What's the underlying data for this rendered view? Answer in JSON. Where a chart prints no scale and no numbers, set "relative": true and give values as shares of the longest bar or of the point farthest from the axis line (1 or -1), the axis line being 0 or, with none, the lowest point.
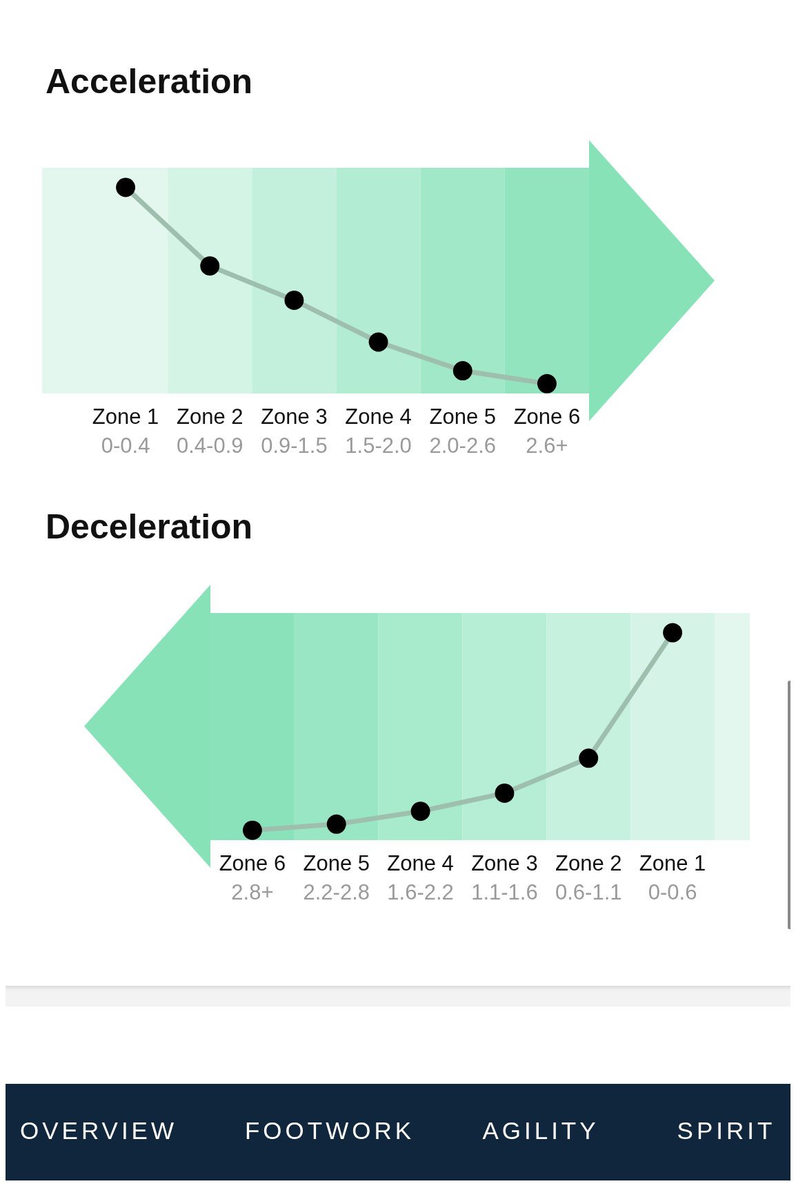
{
  "chart_data": [
    {
      "type": "line",
      "title": "Acceleration",
      "relative": true,
      "marker": "circle",
      "line_style": "solid",
      "grid": false,
      "tick_labels": "x",
      "categories": [
        "Zone 1\n0-0.4",
        "Zone 2\n0.4-0.9",
        "Zone 3\n0.9-1.5",
        "Zone 4\n1.5-2.0",
        "Zone 5\n2.0-2.6",
        "Zone 6\n2.6+"
      ],
      "series": [
        {
          "color": "#9fbfae",
          "values": [
            1,
            0.6,
            0.425,
            0.212,
            0.066,
            0
          ]
        }
      ],
      "bands": [
        {
          "axis": "x",
          "from": "Zone 1\n0-0.4",
          "to": "Zone 1\n0-0.4",
          "color": "#e3f7ee"
        },
        {
          "axis": "x",
          "from": "Zone 2\n0.4-0.9",
          "to": "Zone 2\n0.4-0.9",
          "color": "#d4f4e6"
        },
        {
          "axis": "x",
          "from": "Zone 3\n0.9-1.5",
          "to": "Zone 3\n0.9-1.5",
          "color": "#c3f0dd"
        },
        {
          "axis": "x",
          "from": "Zone 4\n1.5-2.0",
          "to": "Zone 4\n1.5-2.0",
          "color": "#b1ecd3"
        },
        {
          "axis": "x",
          "from": "Zone 5\n2.0-2.6",
          "to": "Zone 5\n2.0-2.6",
          "color": "#a0e8c8"
        },
        {
          "axis": "x",
          "from": "Zone 6\n2.6+",
          "to": "Zone 6\n2.6+",
          "color": "#91e4be"
        }
      ]
    },
    {
      "type": "line",
      "title": "Deceleration",
      "relative": true,
      "marker": "circle",
      "line_style": "solid",
      "grid": false,
      "tick_labels": "x",
      "categories": [
        "Zone 6\n2.8+",
        "Zone 5\n2.2-2.8",
        "Zone 4\n1.6-2.2",
        "Zone 3\n1.1-1.6",
        "Zone 2\n0.6-1.1",
        "Zone 1\n0-0.6"
      ],
      "series": [
        {
          "color": "#9fbfae",
          "values": [
            0,
            0.031,
            0.096,
            0.188,
            0.365,
            1
          ]
        }
      ],
      "bands": [
        {
          "axis": "x",
          "from": "Zone 6\n2.8+",
          "to": "Zone 6\n2.8+",
          "color": "#89e2b9"
        },
        {
          "axis": "x",
          "from": "Zone 5\n2.2-2.8",
          "to": "Zone 5\n2.2-2.8",
          "color": "#98e6c3"
        },
        {
          "axis": "x",
          "from": "Zone 4\n1.6-2.2",
          "to": "Zone 4\n1.6-2.2",
          "color": "#a7eacc"
        },
        {
          "axis": "x",
          "from": "Zone 3\n1.1-1.6",
          "to": "Zone 3\n1.1-1.6",
          "color": "#b5edd5"
        },
        {
          "axis": "x",
          "from": "Zone 2\n0.6-1.1",
          "to": "Zone 2\n0.6-1.1",
          "color": "#c6f1de"
        },
        {
          "axis": "x",
          "from": "Zone 1\n0-0.6",
          "to": "Zone 1\n0-0.6",
          "color": "#d5f4e7"
        }
      ]
    },
    {
      "type": "other",
      "annotations": [
        "OVERVIEW",
        "FOOTWORK",
        "AGILITY",
        "SPIRIT"
      ]
    }
  ]
}
